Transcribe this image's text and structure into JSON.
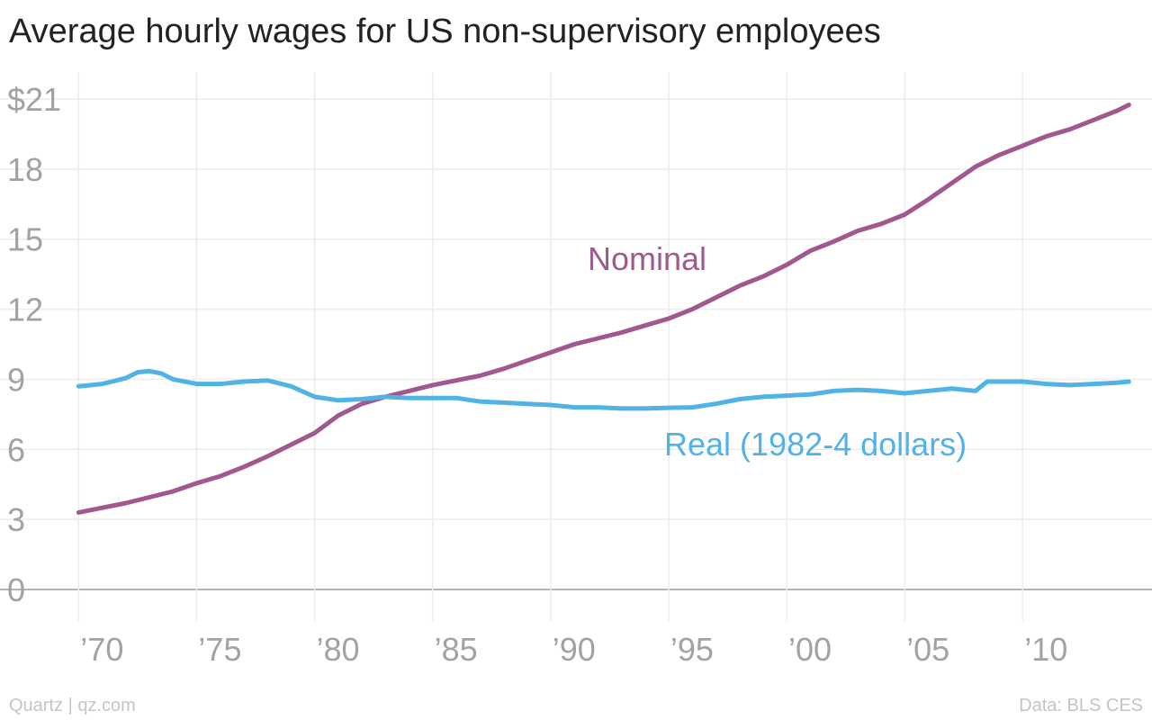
{
  "chart_data": {
    "type": "line",
    "title": "Average hourly wages for US non-supervisory employees",
    "xlabel": "",
    "ylabel": "",
    "xlim": [
      1968.5,
      2015.1
    ],
    "ylim": [
      0,
      21
    ],
    "y_ticks": [
      0,
      3,
      6,
      9,
      12,
      15,
      18,
      21
    ],
    "y_tick_labels": [
      "0",
      "3",
      "6",
      "9",
      "12",
      "15",
      "18",
      "$21"
    ],
    "x_ticks": [
      1970,
      1975,
      1980,
      1985,
      1990,
      1995,
      2000,
      2005,
      2010
    ],
    "x_tick_labels": [
      "’70",
      "’75",
      "’80",
      "’85",
      "’90",
      "’95",
      "’00",
      "’05",
      "’10"
    ],
    "grid": true,
    "legend": "direct labels on lines",
    "series": [
      {
        "name": "Nominal",
        "color": "#a0588e",
        "x": [
          1970,
          1971,
          1972,
          1973,
          1974,
          1975,
          1976,
          1977,
          1978,
          1979,
          1980,
          1981,
          1982,
          1983,
          1984,
          1985,
          1986,
          1987,
          1988,
          1989,
          1990,
          1991,
          1992,
          1993,
          1994,
          1995,
          1996,
          1997,
          1998,
          1999,
          2000,
          2001,
          2002,
          2003,
          2004,
          2005,
          2006,
          2007,
          2008,
          2009,
          2010,
          2011,
          2012,
          2013,
          2014,
          2014.5
        ],
        "values": [
          3.3,
          3.5,
          3.7,
          3.95,
          4.2,
          4.55,
          4.85,
          5.25,
          5.7,
          6.2,
          6.7,
          7.45,
          7.95,
          8.25,
          8.5,
          8.75,
          8.95,
          9.15,
          9.45,
          9.8,
          10.15,
          10.5,
          10.75,
          11.0,
          11.3,
          11.6,
          12.0,
          12.5,
          13.0,
          13.4,
          13.9,
          14.5,
          14.9,
          15.35,
          15.65,
          16.05,
          16.7,
          17.4,
          18.1,
          18.6,
          19.0,
          19.4,
          19.7,
          20.1,
          20.5,
          20.75
        ]
      },
      {
        "name": "Real (1982-4 dollars)",
        "color": "#51b2e5",
        "x": [
          1970,
          1971,
          1972,
          1972.5,
          1973,
          1973.5,
          1974,
          1975,
          1976,
          1977,
          1978,
          1979,
          1980,
          1981,
          1982,
          1983,
          1984,
          1985,
          1986,
          1987,
          1988,
          1989,
          1990,
          1991,
          1992,
          1993,
          1994,
          1995,
          1996,
          1997,
          1998,
          1999,
          2000,
          2001,
          2002,
          2003,
          2004,
          2005,
          2006,
          2007,
          2008,
          2008.5,
          2009,
          2010,
          2011,
          2012,
          2013,
          2014,
          2014.5
        ],
        "values": [
          8.7,
          8.8,
          9.05,
          9.3,
          9.35,
          9.25,
          9.0,
          8.8,
          8.8,
          8.9,
          8.95,
          8.7,
          8.25,
          8.1,
          8.15,
          8.25,
          8.2,
          8.2,
          8.2,
          8.05,
          8.0,
          7.95,
          7.9,
          7.8,
          7.8,
          7.75,
          7.75,
          7.78,
          7.8,
          7.95,
          8.15,
          8.25,
          8.3,
          8.35,
          8.5,
          8.55,
          8.5,
          8.4,
          8.5,
          8.6,
          8.5,
          8.9,
          8.9,
          8.9,
          8.8,
          8.75,
          8.8,
          8.85,
          8.9
        ]
      }
    ]
  },
  "series_labels": {
    "nominal": "Nominal",
    "real": "Real (1982-4 dollars)"
  },
  "footer": {
    "credit": "Quartz | qz.com",
    "source": "Data: BLS CES"
  }
}
